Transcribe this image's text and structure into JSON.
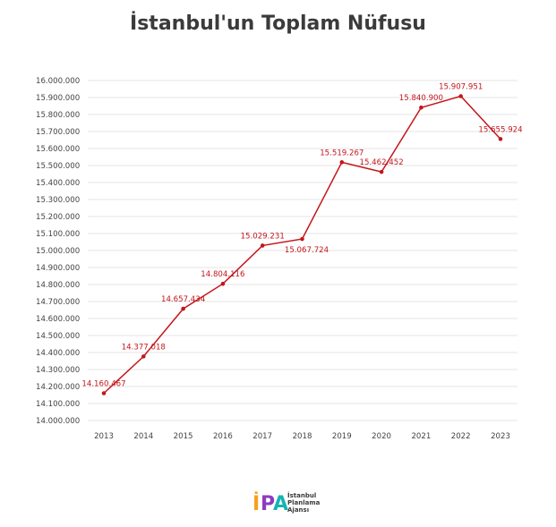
{
  "title": "İstanbul'un Toplam Nüfusu",
  "logo": {
    "mark": "İPA",
    "lines": [
      "İstanbul",
      "Planlama",
      "Ajansı"
    ]
  },
  "colors": {
    "line": "#c4161c",
    "title": "#3b3b3b"
  },
  "chart_data": {
    "type": "line",
    "title": "İstanbul'un Toplam Nüfusu",
    "xlabel": "",
    "ylabel": "",
    "categories": [
      "2013",
      "2014",
      "2015",
      "2016",
      "2017",
      "2018",
      "2019",
      "2020",
      "2021",
      "2022",
      "2023"
    ],
    "series": [
      {
        "values": [
          14160467,
          14377018,
          14657434,
          14804116,
          15029231,
          15067724,
          15519267,
          15462452,
          15840900,
          15907951,
          15655924
        ]
      }
    ],
    "data_labels": [
      "14.160.467",
      "14.377.018",
      "14.657.434",
      "14.804.116",
      "15.029.231",
      "15.067.724",
      "15.519.267",
      "15.462.452",
      "15.840.900",
      "15.907.951",
      "15.655.924"
    ],
    "ylim": [
      14000000,
      16000000
    ],
    "yticks": [
      "14.000.000",
      "14.100.000",
      "14.200.000",
      "14.300.000",
      "14.400.000",
      "14.500.000",
      "14.600.000",
      "14.700.000",
      "14.800.000",
      "14.900.000",
      "15.000.000",
      "15.100.000",
      "15.200.000",
      "15.300.000",
      "15.400.000",
      "15.500.000",
      "15.600.000",
      "15.700.000",
      "15.800.000",
      "15.900.000",
      "16.000.000"
    ],
    "grid": true,
    "legend": "none"
  }
}
